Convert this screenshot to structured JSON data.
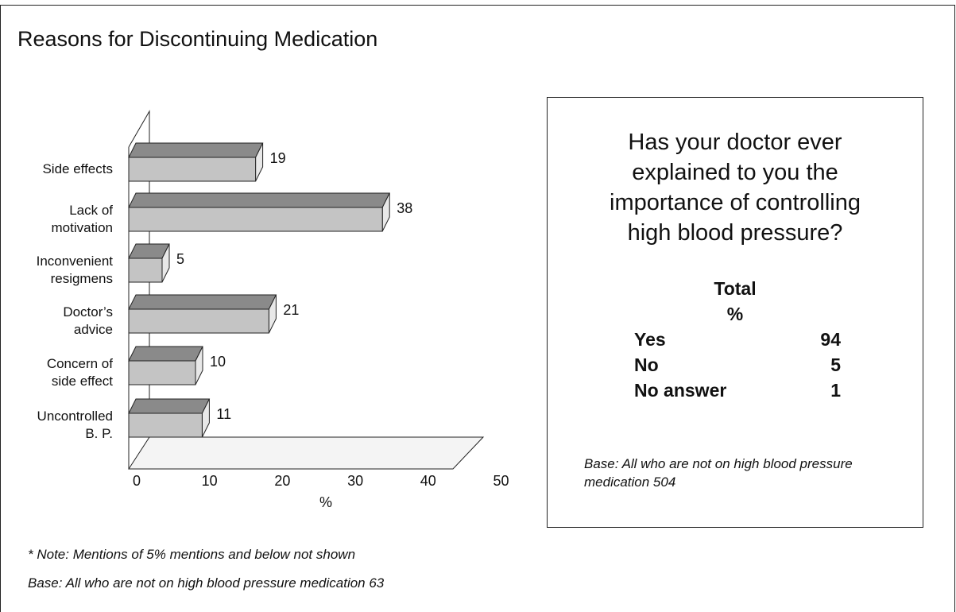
{
  "chart_data": {
    "type": "bar",
    "orientation": "horizontal",
    "title": "Reasons for Discontinuing Medication",
    "categories": [
      "Side effects",
      "Lack of\nmotivation",
      "Inconvenient\nresigmens",
      "Doctor’s\nadvice",
      "Concern of\nside effect",
      "Uncontrolled\nB. P."
    ],
    "values": [
      19,
      38,
      5,
      21,
      10,
      11
    ],
    "color": "#c4c4c4",
    "xlim": [
      0,
      50
    ],
    "xticks": [
      0,
      10,
      20,
      30,
      40,
      50
    ],
    "xlabel": "%",
    "notes": [
      "* Note: Mentions of 5% mentions and below not shown",
      "Base: All who are not on high blood pressure medication   63"
    ]
  },
  "side_table": {
    "question": "Has your doctor ever\nexplained to you the\nimportance of controlling\nhigh blood pressure?",
    "header": [
      "Total",
      "%"
    ],
    "rows": [
      [
        "Yes",
        94
      ],
      [
        "No",
        5
      ],
      [
        "No answer",
        1
      ]
    ],
    "base": "Base: All who are not on high blood pressure\nmedication   504"
  }
}
